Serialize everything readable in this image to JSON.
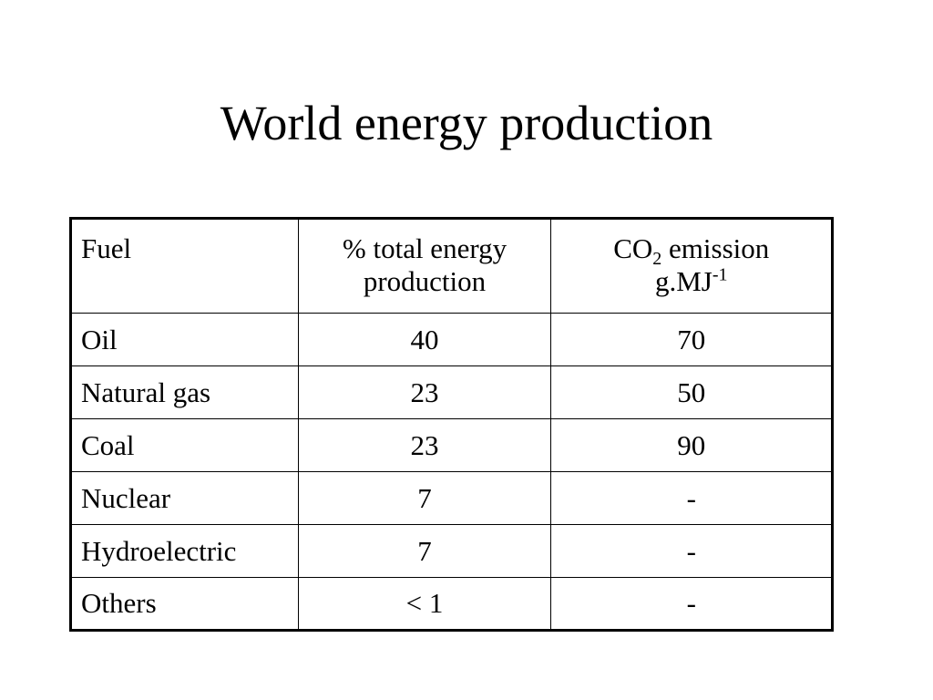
{
  "title": "World energy production",
  "table": {
    "headers": {
      "fuel": "Fuel",
      "percent": "% total energy production",
      "co2_prefix": "CO",
      "co2_sub": "2",
      "co2_suffix": " emission",
      "unit_base": "g.MJ",
      "unit_sup": "-1"
    },
    "rows": [
      {
        "fuel": "Oil",
        "percent": "40",
        "co2": "70"
      },
      {
        "fuel": "Natural gas",
        "percent": "23",
        "co2": "50"
      },
      {
        "fuel": "Coal",
        "percent": "23",
        "co2": "90"
      },
      {
        "fuel": "Nuclear",
        "percent": "7",
        "co2": "-"
      },
      {
        "fuel": "Hydroelectric",
        "percent": "7",
        "co2": "-"
      },
      {
        "fuel": "Others",
        "percent": "< 1",
        "co2": "-"
      }
    ]
  }
}
